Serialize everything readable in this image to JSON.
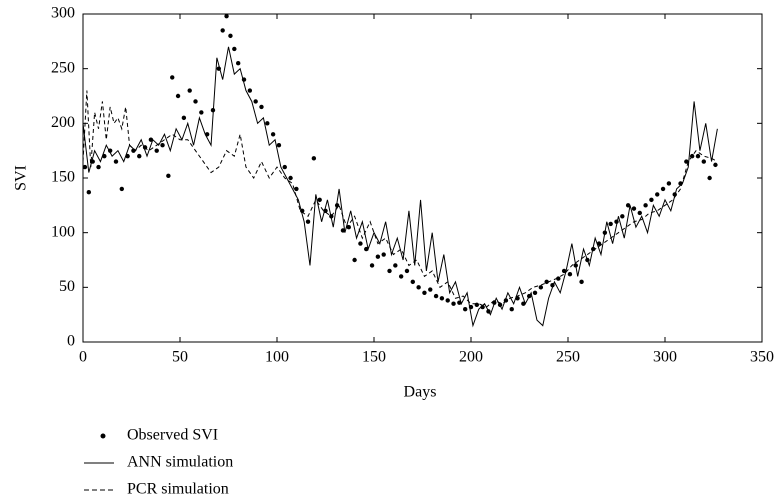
{
  "chart_data": {
    "type": "line",
    "x_label": "Days",
    "y_label": "SVI",
    "xlim": [
      0,
      350
    ],
    "ylim": [
      0,
      300
    ],
    "xticks": [
      0,
      50,
      100,
      150,
      200,
      250,
      300,
      350
    ],
    "yticks": [
      0,
      50,
      100,
      150,
      200,
      250,
      300
    ],
    "series": [
      {
        "name": "Observed SVI",
        "color": "#000000",
        "style": "markers",
        "x": [
          1,
          3,
          5,
          8,
          11,
          14,
          17,
          20,
          23,
          26,
          29,
          32,
          35,
          38,
          41,
          44,
          46,
          49,
          52,
          55,
          58,
          61,
          64,
          67,
          70,
          72,
          74,
          76,
          78,
          80,
          83,
          86,
          89,
          92,
          95,
          98,
          101,
          104,
          107,
          110,
          113,
          116,
          119,
          122,
          125,
          128,
          131,
          134,
          137,
          140,
          143,
          146,
          149,
          152,
          155,
          158,
          161,
          164,
          167,
          170,
          173,
          176,
          179,
          182,
          185,
          188,
          191,
          194,
          197,
          200,
          203,
          206,
          209,
          212,
          215,
          218,
          221,
          224,
          227,
          230,
          233,
          236,
          239,
          242,
          245,
          248,
          251,
          254,
          257,
          260,
          263,
          266,
          269,
          272,
          275,
          278,
          281,
          284,
          287,
          290,
          293,
          296,
          299,
          302,
          305,
          308,
          311,
          314,
          317,
          320,
          323,
          326
        ],
        "values": [
          160,
          137,
          165,
          160,
          170,
          175,
          165,
          140,
          170,
          175,
          170,
          178,
          185,
          175,
          180,
          152,
          242,
          225,
          205,
          230,
          220,
          210,
          190,
          212,
          250,
          285,
          298,
          280,
          268,
          255,
          240,
          230,
          220,
          215,
          200,
          190,
          180,
          160,
          150,
          140,
          120,
          110,
          168,
          130,
          120,
          115,
          125,
          102,
          105,
          75,
          90,
          85,
          70,
          78,
          80,
          65,
          70,
          60,
          65,
          55,
          50,
          45,
          48,
          42,
          40,
          38,
          35,
          36,
          30,
          32,
          34,
          32,
          28,
          36,
          34,
          38,
          30,
          40,
          35,
          42,
          45,
          50,
          55,
          52,
          58,
          65,
          62,
          70,
          55,
          75,
          85,
          90,
          100,
          108,
          110,
          115,
          125,
          122,
          118,
          125,
          130,
          135,
          140,
          145,
          135,
          145,
          165,
          170,
          170,
          165,
          150,
          162
        ]
      },
      {
        "name": "ANN simulation",
        "color": "#000000",
        "style": "solid",
        "x": [
          0,
          3,
          6,
          9,
          12,
          15,
          18,
          21,
          24,
          27,
          30,
          33,
          36,
          39,
          42,
          45,
          48,
          51,
          54,
          57,
          60,
          63,
          66,
          69,
          72,
          75,
          78,
          81,
          84,
          87,
          90,
          93,
          96,
          99,
          102,
          105,
          108,
          111,
          114,
          117,
          120,
          123,
          126,
          129,
          132,
          135,
          138,
          141,
          144,
          147,
          150,
          153,
          156,
          159,
          162,
          165,
          168,
          171,
          174,
          177,
          180,
          183,
          186,
          189,
          192,
          195,
          198,
          201,
          204,
          207,
          210,
          213,
          216,
          219,
          222,
          225,
          228,
          231,
          234,
          237,
          240,
          243,
          246,
          249,
          252,
          255,
          258,
          261,
          264,
          267,
          270,
          273,
          276,
          279,
          282,
          285,
          288,
          291,
          294,
          297,
          300,
          303,
          306,
          309,
          312,
          315,
          318,
          321,
          324,
          327
        ],
        "values": [
          200,
          155,
          175,
          165,
          180,
          170,
          175,
          165,
          180,
          175,
          185,
          170,
          185,
          180,
          190,
          175,
          195,
          185,
          200,
          180,
          205,
          190,
          180,
          260,
          240,
          270,
          245,
          250,
          230,
          220,
          200,
          205,
          180,
          185,
          160,
          150,
          140,
          130,
          110,
          70,
          135,
          110,
          130,
          105,
          140,
          100,
          120,
          95,
          110,
          85,
          100,
          90,
          110,
          80,
          95,
          75,
          120,
          70,
          130,
          65,
          100,
          55,
          80,
          45,
          55,
          35,
          45,
          15,
          30,
          35,
          25,
          40,
          30,
          45,
          35,
          50,
          35,
          45,
          20,
          15,
          40,
          55,
          45,
          65,
          90,
          60,
          85,
          70,
          95,
          80,
          110,
          90,
          115,
          95,
          125,
          105,
          115,
          100,
          125,
          115,
          130,
          120,
          140,
          145,
          160,
          220,
          175,
          200,
          165,
          195
        ]
      },
      {
        "name": "PCR simulation",
        "color": "#000000",
        "style": "dashed",
        "x": [
          0,
          2,
          4,
          6,
          8,
          10,
          12,
          14,
          16,
          18,
          20,
          22,
          24,
          27,
          30,
          34,
          38,
          42,
          46,
          50,
          54,
          58,
          62,
          66,
          70,
          74,
          78,
          81,
          84,
          88,
          92,
          96,
          100,
          104,
          108,
          112,
          116,
          120,
          124,
          128,
          132,
          136,
          140,
          144,
          148,
          152,
          156,
          160,
          164,
          168,
          172,
          176,
          180,
          184,
          188,
          192,
          196,
          200,
          204,
          208,
          212,
          216,
          220,
          224,
          228,
          232,
          236,
          240,
          244,
          248,
          252,
          256,
          260,
          264,
          268,
          272,
          276,
          280,
          284,
          288,
          292,
          296,
          300,
          304,
          308,
          312,
          316,
          320,
          324,
          327
        ],
        "values": [
          165,
          230,
          160,
          210,
          195,
          220,
          185,
          215,
          200,
          205,
          195,
          215,
          180,
          175,
          180,
          175,
          180,
          185,
          190,
          185,
          185,
          175,
          165,
          155,
          160,
          175,
          170,
          190,
          160,
          150,
          165,
          150,
          160,
          150,
          145,
          120,
          115,
          130,
          120,
          115,
          125,
          105,
          115,
          95,
          110,
          90,
          95,
          80,
          85,
          70,
          75,
          60,
          65,
          50,
          55,
          40,
          42,
          35,
          35,
          32,
          38,
          35,
          40,
          42,
          45,
          50,
          52,
          55,
          58,
          62,
          70,
          75,
          80,
          85,
          90,
          95,
          100,
          105,
          110,
          112,
          118,
          120,
          125,
          130,
          140,
          165,
          175,
          170,
          168,
          165
        ]
      }
    ]
  }
}
